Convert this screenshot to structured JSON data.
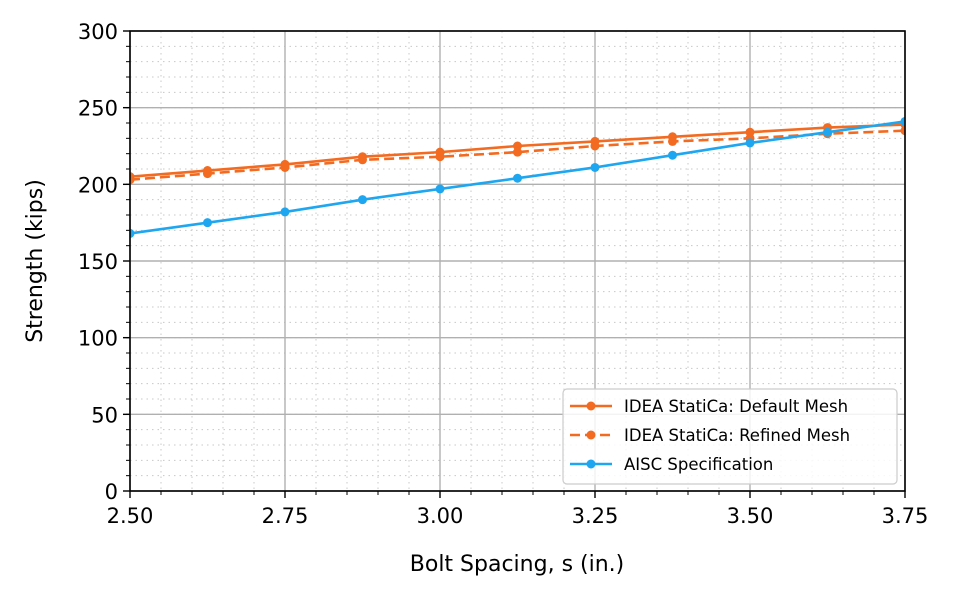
{
  "chart_data": {
    "type": "line",
    "title": "",
    "xlabel": "Bolt Spacing, s (in.)",
    "ylabel": "Strength (kips)",
    "xlim": [
      2.5,
      3.75
    ],
    "ylim": [
      0,
      300
    ],
    "xticks": [
      "2.50",
      "2.75",
      "3.00",
      "3.25",
      "3.50",
      "3.75"
    ],
    "yticks": [
      "0",
      "50",
      "100",
      "150",
      "200",
      "250",
      "300"
    ],
    "grid": {
      "major": true,
      "minor": true
    },
    "legend_position": "bottom-right",
    "x": [
      2.5,
      2.625,
      2.75,
      2.875,
      3.0,
      3.125,
      3.25,
      3.375,
      3.5,
      3.625,
      3.75
    ],
    "series": [
      {
        "name": "IDEA StatiCa: Default Mesh",
        "color": "#f26b21",
        "dash": "solid",
        "values": [
          205,
          209,
          213,
          218,
          221,
          225,
          228,
          231,
          234,
          237,
          239
        ]
      },
      {
        "name": "IDEA StatiCa: Refined Mesh",
        "color": "#f26b21",
        "dash": "dashed",
        "values": [
          203,
          207,
          211,
          216,
          218,
          221,
          225,
          228,
          230,
          233,
          235
        ]
      },
      {
        "name": "AISC Specification",
        "color": "#1ea7f0",
        "dash": "solid",
        "values": [
          168,
          175,
          182,
          190,
          197,
          204,
          211,
          219,
          227,
          234,
          241
        ]
      }
    ]
  }
}
